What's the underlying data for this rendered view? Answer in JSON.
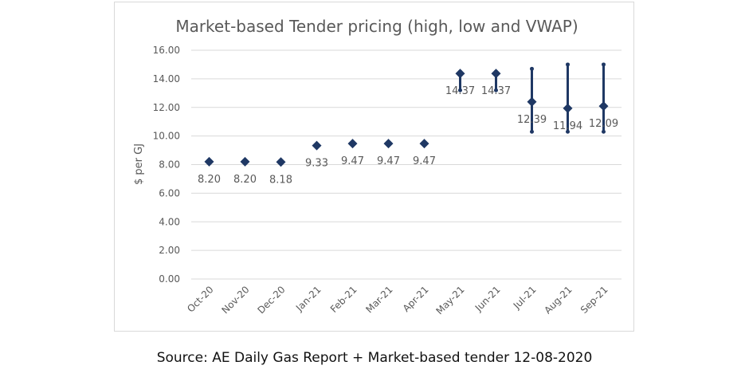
{
  "chart_data": {
    "type": "scatter",
    "title": "Market-based Tender pricing (high, low and VWAP)",
    "xlabel": "",
    "ylabel": "$ per GJ",
    "ylim": [
      0,
      16
    ],
    "yticks": [
      "0.00",
      "2.00",
      "4.00",
      "6.00",
      "8.00",
      "10.00",
      "12.00",
      "14.00",
      "16.00"
    ],
    "grid": true,
    "legend": "none",
    "categories": [
      "Oct-20",
      "Nov-20",
      "Dec-20",
      "Jan-21",
      "Feb-21",
      "Mar-21",
      "Apr-21",
      "May-21",
      "Jun-21",
      "Jul-21",
      "Aug-21",
      "Sep-21"
    ],
    "series": [
      {
        "name": "VWAP",
        "values": [
          8.2,
          8.2,
          8.18,
          9.33,
          9.47,
          9.47,
          9.47,
          14.37,
          14.37,
          12.39,
          11.94,
          12.09
        ]
      },
      {
        "name": "High",
        "values": [
          8.2,
          8.2,
          8.18,
          9.33,
          9.47,
          9.47,
          9.47,
          14.5,
          14.5,
          14.7,
          15.0,
          15.0
        ]
      },
      {
        "name": "Low",
        "values": [
          8.2,
          8.2,
          8.18,
          9.33,
          9.47,
          9.47,
          9.47,
          13.2,
          13.2,
          10.3,
          10.3,
          10.3
        ]
      }
    ],
    "data_labels": [
      "8.20",
      "8.20",
      "8.18",
      "9.33",
      "9.47",
      "9.47",
      "9.47",
      "14.37",
      "14.37",
      "12.39",
      "11.94",
      "12.09"
    ],
    "colors": {
      "marker": "#1f3864",
      "grid": "#d9d9d9",
      "text": "#595959"
    }
  },
  "caption": "Source: AE Daily Gas Report + Market-based tender 12-08-2020"
}
